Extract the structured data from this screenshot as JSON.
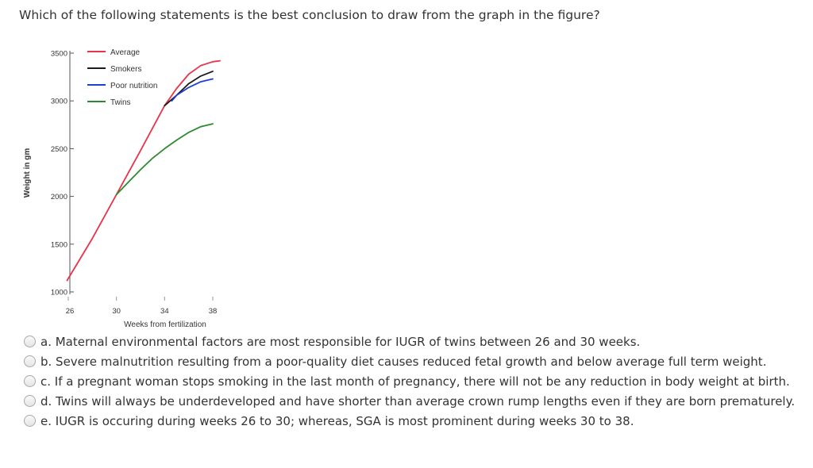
{
  "question": "Which of the following statements is the best conclusion to draw from the graph in the figure?",
  "options": [
    {
      "label": "a. Maternal environmental factors are most responsible for IUGR of twins between 26 and 30 weeks."
    },
    {
      "label": "b. Severe malnutrition resulting from a poor-quality diet causes reduced fetal growth and below average full term weight."
    },
    {
      "label": "c. If a pregnant woman stops smoking in the last month of pregnancy, there will not be any reduction in body weight at birth."
    },
    {
      "label": "d. Twins will always be underdeveloped and have shorter than average crown rump lengths even if they are born prematurely."
    },
    {
      "label": "e. IUGR is occuring during weeks 26 to 30; whereas, SGA is most prominent during weeks 30 to 38."
    }
  ],
  "chart_data": {
    "type": "line",
    "xlabel": "Weeks from fertilization",
    "ylabel": "Weight in gm",
    "ylim": [
      1000,
      3500
    ],
    "yticks": [
      1000,
      1500,
      2000,
      2500,
      3000,
      3500
    ],
    "xticks": [
      26,
      30,
      34,
      38
    ],
    "legend_position": "top-left",
    "grid": false,
    "series": [
      {
        "name": "Average",
        "color": "#e8334a",
        "x": [
          25.9,
          28,
          30,
          32,
          34,
          35,
          36,
          37,
          38,
          38.6
        ],
        "y": [
          1120,
          1560,
          2020,
          2480,
          2950,
          3130,
          3280,
          3370,
          3410,
          3420
        ]
      },
      {
        "name": "Smokers",
        "color": "#1a1a1a",
        "x": [
          34,
          35,
          36,
          37,
          38
        ],
        "y": [
          2950,
          3060,
          3180,
          3260,
          3310
        ]
      },
      {
        "name": "Poor nutrition",
        "color": "#1f3fcf",
        "x": [
          34.6,
          35,
          36,
          37,
          38
        ],
        "y": [
          3000,
          3060,
          3140,
          3200,
          3230
        ]
      },
      {
        "name": "Twins",
        "color": "#2e8a2e",
        "x": [
          30,
          31,
          32,
          33,
          34,
          35,
          36,
          37,
          38
        ],
        "y": [
          2020,
          2150,
          2280,
          2400,
          2500,
          2590,
          2670,
          2730,
          2760
        ]
      }
    ]
  }
}
